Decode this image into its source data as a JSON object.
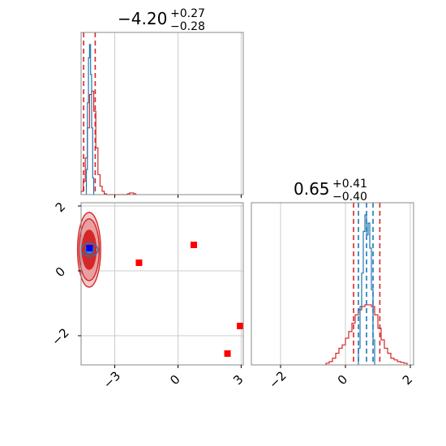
{
  "chart_data": [
    {
      "panel": "hist-param-1",
      "type": "histogram",
      "title": {
        "value": "−4.20",
        "upper": "+0.27",
        "lower": "−0.28"
      },
      "xlim": [
        -4.6,
        3.1
      ],
      "x_ticks": [
        -3,
        0,
        3
      ],
      "x_tick_labels": [],
      "quantile_lines": [
        -4.48,
        -3.93
      ],
      "median_line": -4.2,
      "grid": true,
      "series": [
        {
          "name": "",
          "color": "#d62728",
          "bins": [
            -4.6,
            -4.5,
            -4.4,
            -4.3,
            -4.2,
            -4.1,
            -4.0,
            -3.9,
            -3.8,
            -3.7,
            -3.6,
            -3.5,
            -3.4,
            -3.3,
            -3.2,
            -3.1,
            -3.0,
            -2.9,
            -2.8,
            -2.7,
            -2.6,
            -2.5,
            -2.4,
            -2.3,
            -2.2,
            -2.1,
            -2.0
          ],
          "counts": [
            0.02,
            0.08,
            0.22,
            0.4,
            0.6,
            0.62,
            0.5,
            0.28,
            0.12,
            0.05,
            0.02,
            0.005,
            0,
            0,
            0,
            0,
            0,
            0,
            0,
            0,
            0,
            0,
            0.005,
            0.01,
            0.01,
            0.005
          ]
        },
        {
          "name": "",
          "color": "#1f77b4",
          "bins": [
            -4.35,
            -4.3,
            -4.25,
            -4.2,
            -4.15,
            -4.1,
            -4.05,
            -4.0
          ],
          "counts": [
            0.15,
            0.55,
            0.82,
            0.9,
            0.72,
            0.4,
            0.1
          ]
        }
      ]
    },
    {
      "panel": "hist-param-2",
      "type": "histogram",
      "title": {
        "value": "0.65",
        "upper": "+0.41",
        "lower": "−0.40"
      },
      "xlim": [
        -2.9,
        2.1
      ],
      "x_ticks": [
        -2,
        0,
        2
      ],
      "x_tick_labels": [
        "−2",
        "0",
        "2"
      ],
      "quantile_lines": [
        0.25,
        1.06
      ],
      "inner_lines": [
        0.4,
        0.65,
        0.85
      ],
      "grid": true,
      "series": [
        {
          "name": "",
          "color": "#d62728",
          "bins": [
            -0.6,
            -0.5,
            -0.4,
            -0.3,
            -0.2,
            -0.1,
            0.0,
            0.1,
            0.2,
            0.3,
            0.4,
            0.5,
            0.6,
            0.7,
            0.8,
            0.9,
            1.0,
            1.1,
            1.2,
            1.3,
            1.4,
            1.5,
            1.6,
            1.7,
            1.8,
            1.9
          ],
          "counts": [
            0.01,
            0.02,
            0.04,
            0.07,
            0.1,
            0.12,
            0.16,
            0.2,
            0.25,
            0.3,
            0.33,
            0.35,
            0.36,
            0.36,
            0.35,
            0.3,
            0.22,
            0.15,
            0.1,
            0.07,
            0.04,
            0.03,
            0.02,
            0.015,
            0.01
          ]
        },
        {
          "name": "",
          "color": "#1f77b4",
          "bins": [
            0.4,
            0.45,
            0.5,
            0.55,
            0.6,
            0.65,
            0.7,
            0.75,
            0.8,
            0.85,
            0.9
          ],
          "counts": [
            0.1,
            0.35,
            0.55,
            0.8,
            0.9,
            0.78,
            0.85,
            0.7,
            0.45,
            0.15
          ]
        }
      ]
    },
    {
      "panel": "scatter-2d",
      "type": "scatter",
      "xlim": [
        -4.6,
        3.1
      ],
      "ylim": [
        -2.9,
        2.1
      ],
      "x_ticks": [
        -3,
        0,
        3
      ],
      "x_tick_labels": [
        "−3",
        "0",
        "3"
      ],
      "y_ticks": [
        -2,
        0,
        2
      ],
      "y_tick_labels": [
        "−2",
        "0",
        "2"
      ],
      "grid": true,
      "contours": [
        {
          "color": "#d62728",
          "cx": -4.22,
          "cy": 0.65,
          "rx": 0.55,
          "ry": 1.15,
          "fill": "#f0c8c8"
        },
        {
          "color": "#d62728",
          "cx": -4.22,
          "cy": 0.65,
          "rx": 0.48,
          "ry": 0.95,
          "fill": "#e8a0a0"
        },
        {
          "color": "#d62728",
          "cx": -4.22,
          "cy": 0.65,
          "rx": 0.33,
          "ry": 0.6,
          "fill": "#d62728"
        },
        {
          "color": "#1f77b4",
          "cx": -4.2,
          "cy": 0.65,
          "rx": 0.4,
          "ry": 0.2,
          "fill": "none"
        },
        {
          "color": "#1f77b4",
          "cx": -4.2,
          "cy": 0.65,
          "rx": 0.2,
          "ry": 0.12,
          "fill": "#4a7fc0"
        }
      ],
      "series": [
        {
          "name": "",
          "color": "#ff0000",
          "marker": "square",
          "x": [
            -1.85,
            0.75,
            2.35,
            2.95
          ],
          "y": [
            0.25,
            0.8,
            -2.55,
            -1.7
          ]
        },
        {
          "name": "",
          "color": "#0000ff",
          "marker": "square",
          "x": [
            -4.2
          ],
          "y": [
            0.7
          ]
        }
      ]
    }
  ]
}
